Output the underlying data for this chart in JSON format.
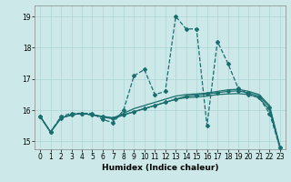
{
  "xlabel": "Humidex (Indice chaleur)",
  "bg_color": "#cce8e8",
  "grid_color": "#aad4d4",
  "line_color": "#1a6e6e",
  "xlim": [
    -0.5,
    23.5
  ],
  "ylim": [
    14.75,
    19.35
  ],
  "yticks": [
    15,
    16,
    17,
    18,
    19
  ],
  "xticks": [
    0,
    1,
    2,
    3,
    4,
    5,
    6,
    7,
    8,
    9,
    10,
    11,
    12,
    13,
    14,
    15,
    16,
    17,
    18,
    19,
    20,
    21,
    22,
    23
  ],
  "series": [
    {
      "y": [
        15.8,
        15.3,
        15.8,
        15.9,
        15.9,
        15.9,
        15.7,
        15.6,
        16.0,
        17.1,
        17.3,
        16.5,
        16.6,
        19.0,
        18.6,
        18.6,
        15.5,
        18.2,
        17.5,
        16.7,
        16.5,
        16.4,
        15.9,
        14.8
      ],
      "linestyle": "--",
      "linewidth": 0.9,
      "marker": true
    },
    {
      "y": [
        15.8,
        15.3,
        15.75,
        15.85,
        15.9,
        15.85,
        15.8,
        15.75,
        15.85,
        15.95,
        16.05,
        16.15,
        16.25,
        16.35,
        16.45,
        16.48,
        16.52,
        16.56,
        16.6,
        16.62,
        16.55,
        16.45,
        16.1,
        14.82
      ],
      "linestyle": "-",
      "linewidth": 0.9,
      "marker": true
    },
    {
      "y": [
        15.8,
        15.3,
        15.75,
        15.85,
        15.9,
        15.85,
        15.8,
        15.75,
        15.9,
        16.05,
        16.15,
        16.25,
        16.35,
        16.45,
        16.5,
        16.52,
        16.55,
        16.6,
        16.65,
        16.67,
        16.6,
        16.5,
        16.15,
        14.82
      ],
      "linestyle": "-",
      "linewidth": 0.9,
      "marker": false
    },
    {
      "y": [
        15.8,
        15.3,
        15.75,
        15.85,
        15.9,
        15.85,
        15.78,
        15.72,
        15.85,
        15.95,
        16.05,
        16.15,
        16.25,
        16.35,
        16.4,
        16.42,
        16.45,
        16.5,
        16.52,
        16.53,
        16.5,
        16.4,
        16.0,
        14.82
      ],
      "linestyle": "-",
      "linewidth": 0.9,
      "marker": false
    }
  ]
}
